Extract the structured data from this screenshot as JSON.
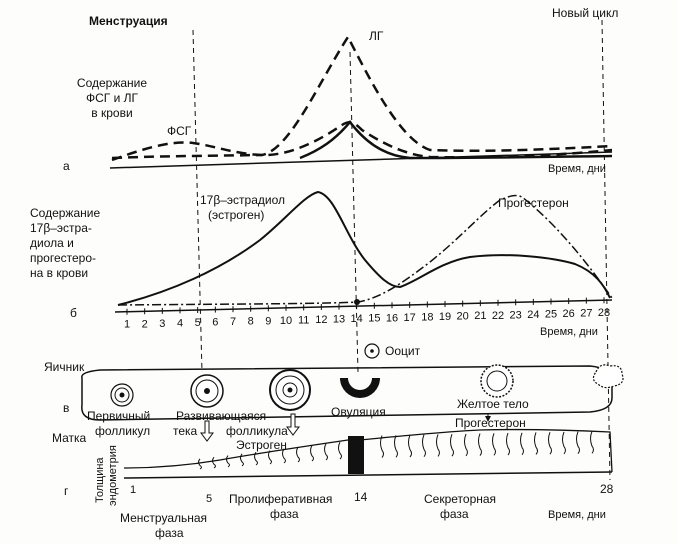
{
  "labels": {
    "menstruation": "Менструация",
    "new_cycle": "Новый цикл",
    "fsh_lh_1": "Содержание",
    "fsh_lh_2": "ФСГ и ЛГ",
    "fsh_lh_3": "в крови",
    "fsh": "ФСГ",
    "lh": "ЛГ",
    "panel_a": "а",
    "time_days": "Время, дни",
    "estradiol_1": "17β–эстрадиол",
    "estradiol_2": "(эстроген)",
    "progesterone": "Прогестерон",
    "steroid_1": "Содержание",
    "steroid_2": "17β–эстра-",
    "steroid_3": "диола и",
    "steroid_4": "прогестеро-",
    "steroid_5": "на в крови",
    "panel_b": "б",
    "time_days_2": "Время, дни",
    "ovary": "Яичник",
    "oocyte": "Ооцит",
    "panel_v": "в",
    "primary_1": "Первичный",
    "primary_2": "фолликул",
    "developing_1": "Развивающаяся",
    "developing_2": "тека",
    "developing_3": "фолликула",
    "developing_4": "Эстроген",
    "ovulation": "Овуляция",
    "corpus_1": "Желтое тело",
    "corpus_2": "Прогестерон",
    "uterus": "Матка",
    "endometrium_1": "Толщина",
    "endometrium_2": "эндометрия",
    "panel_g": "г",
    "menstrual_1": "Менструальная",
    "menstrual_2": "фаза",
    "proliferative_1": "Пролиферативная",
    "proliferative_2": "фаза",
    "secretory_1": "Секреторная",
    "secretory_2": "фаза",
    "time_days_3": "Время, дни"
  },
  "day_ticks": [
    "1",
    "2",
    "3",
    "4",
    "5",
    "6",
    "7",
    "8",
    "9",
    "10",
    "11",
    "12",
    "13",
    "14",
    "15",
    "16",
    "17",
    "18",
    "19",
    "20",
    "21",
    "22",
    "23",
    "24",
    "25",
    "26",
    "27",
    "28"
  ],
  "endometrium_ticks": [
    "1",
    "5",
    "14",
    "28"
  ]
}
